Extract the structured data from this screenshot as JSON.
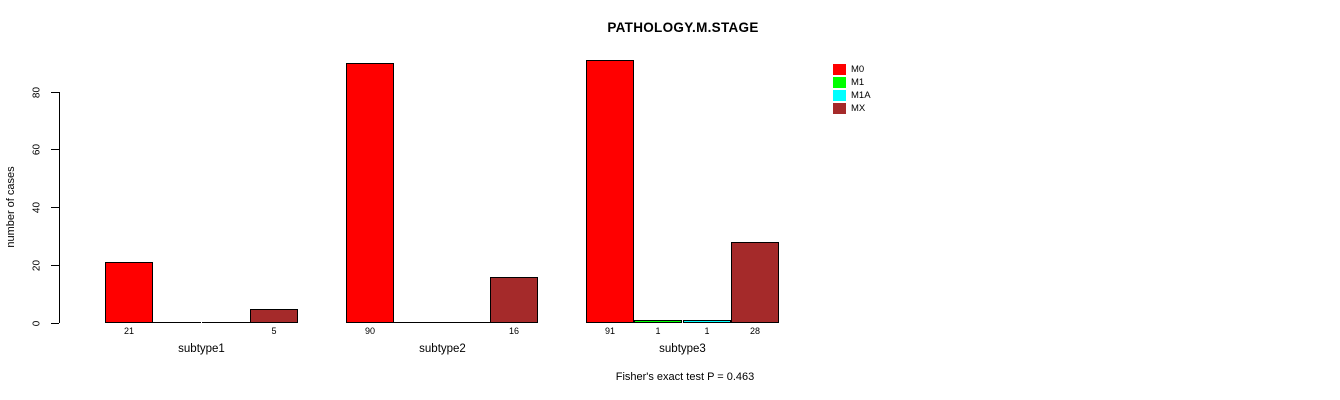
{
  "title": "PATHOLOGY.M.STAGE",
  "footer": "Fisher's exact test P = 0.463",
  "chart_data": {
    "type": "bar",
    "title": "PATHOLOGY.M.STAGE",
    "xlabel": "",
    "ylabel": "number of cases",
    "categories": [
      "subtype1",
      "subtype2",
      "subtype3"
    ],
    "series": [
      {
        "name": "M0",
        "color": "#FF0000",
        "values": [
          21,
          90,
          91
        ]
      },
      {
        "name": "M1",
        "color": "#00FF00",
        "values": [
          0,
          0,
          1
        ]
      },
      {
        "name": "M1A",
        "color": "#00FFFF",
        "values": [
          0,
          0,
          1
        ]
      },
      {
        "name": "MX",
        "color": "#A52A2A",
        "values": [
          5,
          16,
          28
        ]
      }
    ],
    "bar_value_labels_shown_for_nonzero_only": true,
    "ylim": [
      0,
      80
    ],
    "yticks": [
      0,
      20,
      40,
      60,
      80
    ],
    "grid": false,
    "legend_position": "top-right",
    "annotation": "Fisher's exact test P = 0.463"
  }
}
